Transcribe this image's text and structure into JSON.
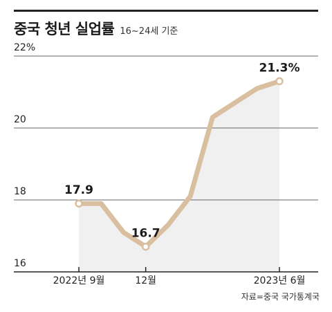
{
  "header": {
    "title": "중국 청년 실업률",
    "subtitle": "16~24세 기준"
  },
  "source": "자료=중국 국가통계국",
  "colors": {
    "line": "#d9bf9f",
    "area": "#f0f0f0",
    "marker_fill": "#ffffff",
    "grid": "#666666",
    "axis": "#222222"
  },
  "chart_data": {
    "type": "line",
    "title": "중국 청년 실업률",
    "subtitle": "16~24세 기준",
    "ylim": [
      16,
      22
    ],
    "yticks": [
      {
        "value": 22,
        "label": "22%"
      },
      {
        "value": 20,
        "label": "20"
      },
      {
        "value": 18,
        "label": "18"
      },
      {
        "value": 16,
        "label": "16"
      }
    ],
    "x": [
      "2022-09",
      "2022-10",
      "2022-11",
      "2022-12",
      "2023-01",
      "2023-02",
      "2023-03",
      "2023-04",
      "2023-05",
      "2023-06"
    ],
    "values": [
      17.9,
      17.9,
      17.1,
      16.7,
      17.3,
      18.1,
      20.3,
      20.7,
      21.1,
      21.3
    ],
    "xtick_labels": [
      {
        "index": 0,
        "label": "2022년 9월"
      },
      {
        "index": 3,
        "label": "12월"
      },
      {
        "index": 9,
        "label": "2023년 6월"
      }
    ],
    "annotations": [
      {
        "index": 0,
        "label": "17.9"
      },
      {
        "index": 3,
        "label": "16.7"
      },
      {
        "index": 9,
        "label": "21.3%"
      }
    ],
    "grid": true
  }
}
